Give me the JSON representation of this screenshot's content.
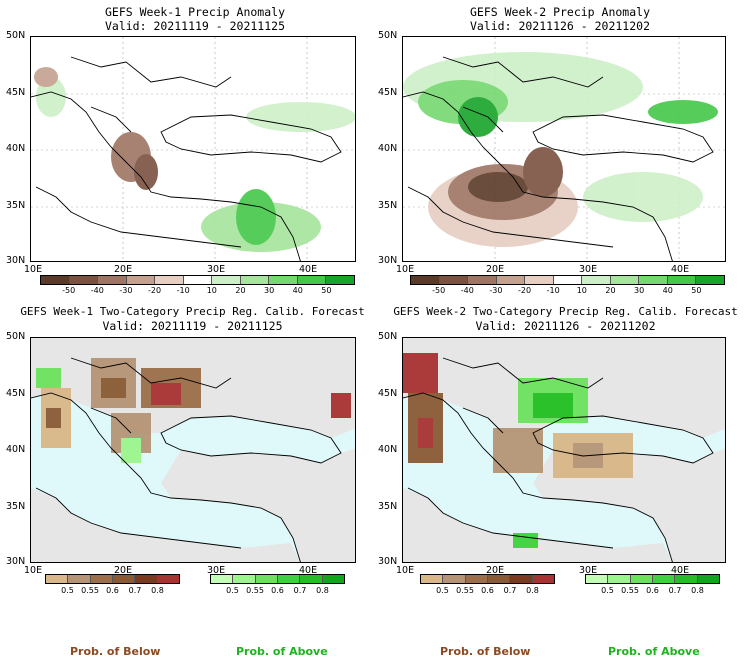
{
  "panels": [
    {
      "title": "GEFS Week-1 Precip Anomaly",
      "valid": "Valid: 20211119 - 20211125"
    },
    {
      "title": "GEFS Week-2 Precip Anomaly",
      "valid": "Valid: 20211126 - 20211202"
    },
    {
      "title": "GEFS Week-1 Two-Category Precip Reg. Calib. Forecast",
      "valid": "Valid: 20211119 - 20211125"
    },
    {
      "title": "GEFS Week-2 Two-Category Precip Reg. Calib. Forecast",
      "valid": "Valid: 20211126 - 20211202"
    }
  ],
  "lat_labels": [
    "50N",
    "45N",
    "40N",
    "35N",
    "30N"
  ],
  "lon_labels": [
    "10E",
    "20E",
    "30E",
    "40E"
  ],
  "anomaly_colorbar": {
    "labels": [
      "-50",
      "-40",
      "-30",
      "-20",
      "-10",
      "10",
      "20",
      "30",
      "40",
      "50"
    ],
    "colors": [
      "#5a3a28",
      "#7b5240",
      "#9e7462",
      "#c4a08e",
      "#e6cec3",
      "#ffffff",
      "#cdefc7",
      "#a6e59c",
      "#75d870",
      "#44c84a",
      "#18a42a"
    ]
  },
  "prob_below_colorbar": {
    "labels": [
      "0.5",
      "0.55",
      "0.6",
      "0.7",
      "0.8"
    ],
    "colors": [
      "#d9b788",
      "#b59476",
      "#9c6f4a",
      "#8a5a34",
      "#7a3a1f",
      "#a83232"
    ]
  },
  "prob_above_colorbar": {
    "labels": [
      "0.5",
      "0.55",
      "0.6",
      "0.7",
      "0.8"
    ],
    "colors": [
      "#c4ffb8",
      "#9bf58c",
      "#6be25c",
      "#3bd33b",
      "#22c022",
      "#0ea61a"
    ]
  },
  "legend_labels": {
    "below": "Prob. of Below",
    "above": "Prob. of Above"
  },
  "colors": {
    "land_gray": "#e6e6e6",
    "sea_cyan": "#dff9fb",
    "below_text": "#8b4a22",
    "above_text": "#1fb31f"
  }
}
